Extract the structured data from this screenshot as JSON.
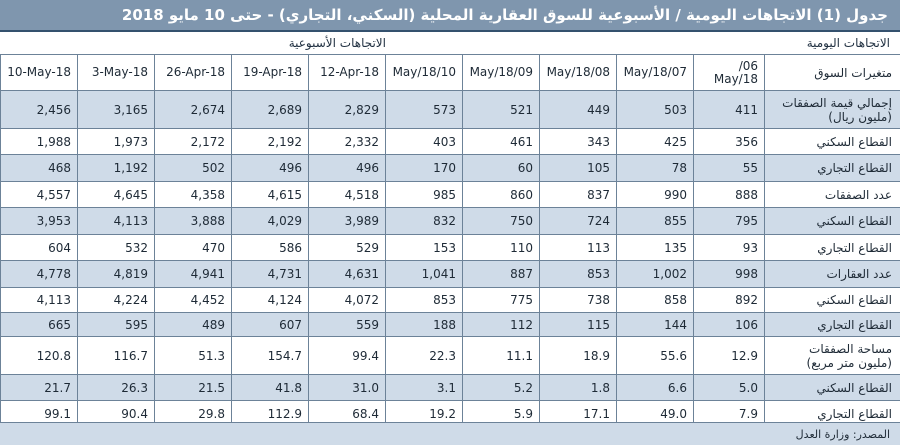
{
  "title": "جدول (1) الاتجاهات اليومية / الأسبوعية  للسوق العقارية المحلية (السكني، التجاري) - حتى 10 مايو 2018",
  "groups": {
    "daily": "الاتجاهات اليومية",
    "weekly": "الاتجاهات الأسبوعية"
  },
  "header": {
    "label": "متغيرات السوق",
    "dates": [
      "/06\nMay/18",
      "May/18/07",
      "May/18/08",
      "May/18/09",
      "May/18/10",
      "12-Apr-18",
      "19-Apr-18",
      "26-Apr-18",
      "3-May-18",
      "10-May-18"
    ]
  },
  "rows": [
    {
      "label": "إجمالي قيمة الصفقات\n(مليون ريال)",
      "values": [
        "411",
        "503",
        "449",
        "521",
        "573",
        "2,829",
        "2,689",
        "2,674",
        "3,165",
        "2,456"
      ]
    },
    {
      "label": "القطاع السكني",
      "values": [
        "356",
        "425",
        "343",
        "461",
        "403",
        "2,332",
        "2,192",
        "2,172",
        "1,973",
        "1,988"
      ]
    },
    {
      "label": "القطاع التجاري",
      "values": [
        "55",
        "78",
        "105",
        "60",
        "170",
        "496",
        "496",
        "502",
        "1,192",
        "468"
      ]
    },
    {
      "label": "عدد الصفقات",
      "values": [
        "888",
        "990",
        "837",
        "860",
        "985",
        "4,518",
        "4,615",
        "4,358",
        "4,645",
        "4,557"
      ]
    },
    {
      "label": "القطاع السكني",
      "values": [
        "795",
        "855",
        "724",
        "750",
        "832",
        "3,989",
        "4,029",
        "3,888",
        "4,113",
        "3,953"
      ]
    },
    {
      "label": "القطاع التجاري",
      "values": [
        "93",
        "135",
        "113",
        "110",
        "153",
        "529",
        "586",
        "470",
        "532",
        "604"
      ]
    },
    {
      "label": "عدد العقارات",
      "values": [
        "998",
        "1,002",
        "853",
        "887",
        "1,041",
        "4,631",
        "4,731",
        "4,941",
        "4,819",
        "4,778"
      ]
    },
    {
      "label": "القطاع السكني",
      "values": [
        "892",
        "858",
        "738",
        "775",
        "853",
        "4,072",
        "4,124",
        "4,452",
        "4,224",
        "4,113"
      ]
    },
    {
      "label": "القطاع التجاري",
      "values": [
        "106",
        "144",
        "115",
        "112",
        "188",
        "559",
        "607",
        "489",
        "595",
        "665"
      ]
    },
    {
      "label": "مساحة الصفقات\n(مليون متر مربع)",
      "values": [
        "12.9",
        "55.6",
        "18.9",
        "11.1",
        "22.3",
        "99.4",
        "154.7",
        "51.3",
        "116.7",
        "120.8"
      ]
    },
    {
      "label": "القطاع السكني",
      "values": [
        "5.0",
        "6.6",
        "1.8",
        "5.2",
        "3.1",
        "31.0",
        "41.8",
        "21.5",
        "26.3",
        "21.7"
      ]
    },
    {
      "label": "القطاع التجاري",
      "values": [
        "7.9",
        "49.0",
        "17.1",
        "5.9",
        "19.2",
        "68.4",
        "112.9",
        "29.8",
        "90.4",
        "99.1"
      ]
    }
  ],
  "source": "المصدر: وزارة العدل"
}
